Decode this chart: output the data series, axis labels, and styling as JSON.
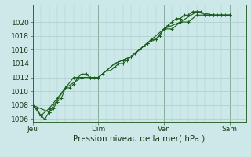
{
  "background_color": "#cce8e8",
  "grid_color": "#aacccc",
  "line_color": "#1a5c1a",
  "marker_color": "#1a5c1a",
  "xlabel": "Pression niveau de la mer( hPa )",
  "ylim": [
    1005.5,
    1022.5
  ],
  "yticks": [
    1006,
    1008,
    1010,
    1012,
    1014,
    1016,
    1018,
    1020
  ],
  "day_ticks": [
    0,
    48,
    96,
    144
  ],
  "day_labels": [
    "Jeu",
    "Dim",
    "Ven",
    "Sam"
  ],
  "series1_x": [
    0,
    3,
    6,
    9,
    12,
    15,
    18,
    21,
    24,
    27,
    30,
    33,
    36,
    39,
    42,
    45,
    48,
    51,
    54,
    57,
    60,
    63,
    66,
    69,
    72,
    75,
    78,
    81,
    84,
    87,
    90,
    93,
    96,
    99,
    102,
    105,
    108,
    111,
    114,
    117,
    120,
    123,
    126,
    129,
    132,
    135,
    138,
    141,
    144
  ],
  "series1_y": [
    1008,
    1007.5,
    1006.5,
    1006,
    1007,
    1007.5,
    1008.5,
    1009,
    1010.5,
    1010.5,
    1011,
    1012,
    1012.5,
    1012.5,
    1012,
    1012,
    1012,
    1012.5,
    1013,
    1013,
    1013.5,
    1014,
    1014,
    1014.5,
    1015,
    1015.5,
    1016,
    1016.5,
    1017,
    1017.5,
    1017.5,
    1018,
    1019,
    1019.5,
    1020,
    1020.5,
    1020.5,
    1021,
    1021,
    1021.5,
    1021.5,
    1021.5,
    1021,
    1021,
    1021,
    1021,
    1021,
    1021,
    1021
  ],
  "series2_x": [
    0,
    6,
    12,
    18,
    24,
    30,
    36,
    42,
    48,
    54,
    60,
    66,
    72,
    78,
    84,
    90,
    96,
    102,
    108,
    114,
    120,
    126,
    132,
    138,
    144
  ],
  "series2_y": [
    1008,
    1006.5,
    1007.5,
    1009,
    1010.5,
    1012,
    1012,
    1012,
    1012,
    1013,
    1014,
    1014.5,
    1015,
    1016,
    1017,
    1017.5,
    1019,
    1019,
    1020,
    1020,
    1021,
    1021,
    1021,
    1021,
    1021
  ],
  "series3_x": [
    0,
    12,
    24,
    36,
    48,
    60,
    72,
    84,
    96,
    108,
    120,
    132,
    144
  ],
  "series3_y": [
    1008,
    1007,
    1010.5,
    1012,
    1012,
    1014,
    1015,
    1017,
    1019,
    1020,
    1021.5,
    1021,
    1021
  ]
}
